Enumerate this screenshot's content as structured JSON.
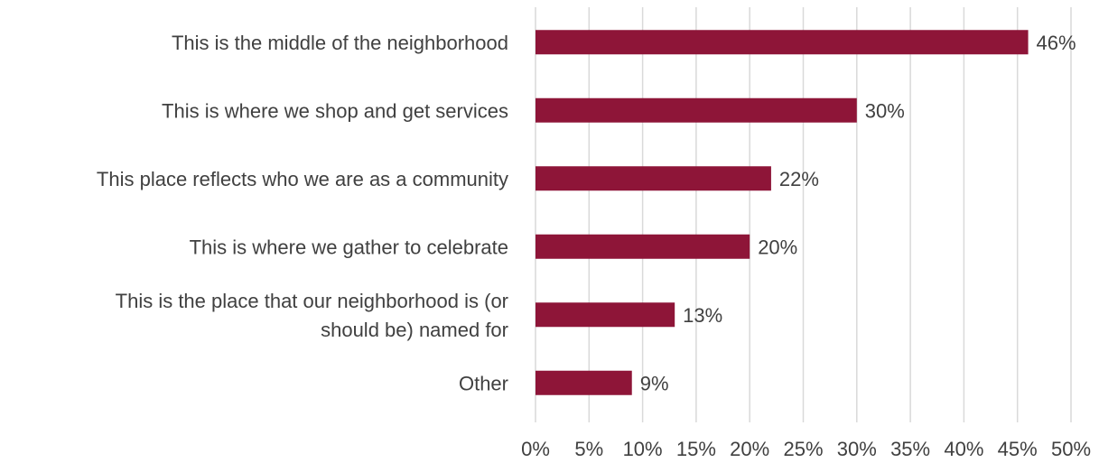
{
  "chart_data": {
    "type": "bar",
    "orientation": "horizontal",
    "title": "",
    "xlabel": "",
    "ylabel": "",
    "categories": [
      [
        "This is the middle of the neighborhood"
      ],
      [
        "This is where we shop and get services"
      ],
      [
        "This place reflects who we are as a community"
      ],
      [
        "This is where we gather to celebrate"
      ],
      [
        "This is the place that our neighborhood is (or",
        "should be) named for"
      ],
      [
        "Other"
      ]
    ],
    "values": [
      46,
      30,
      22,
      20,
      13,
      9
    ],
    "data_labels": [
      "46%",
      "30%",
      "22%",
      "20%",
      "13%",
      "9%"
    ],
    "xlim": [
      0,
      50
    ],
    "x_ticks": [
      0,
      5,
      10,
      15,
      20,
      25,
      30,
      35,
      40,
      45,
      50
    ],
    "x_tick_labels": [
      "0%",
      "5%",
      "10%",
      "15%",
      "20%",
      "25%",
      "30%",
      "35%",
      "40%",
      "45%",
      "50%"
    ],
    "grid": true,
    "legend": "none",
    "bar_color": "#8e1538",
    "grid_color": "#d9d9d9",
    "text_color": "#404040"
  }
}
